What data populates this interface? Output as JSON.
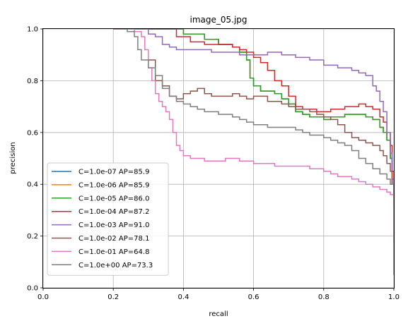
{
  "chart_data": {
    "type": "line",
    "title": "image_05.jpg",
    "xlabel": "recall",
    "ylabel": "precision",
    "xlim": [
      0.0,
      1.0
    ],
    "ylim": [
      0.0,
      1.0
    ],
    "xticks": [
      "0.0",
      "0.2",
      "0.4",
      "0.6",
      "0.8",
      "1.0"
    ],
    "yticks": [
      "0.0",
      "0.2",
      "0.4",
      "0.6",
      "0.8",
      "1.0"
    ],
    "grid": true,
    "legend_position": "lower-left",
    "series": [
      {
        "name": "C=1.0e-07 AP=85.9",
        "color": "#1f77b4",
        "points": [
          [
            0.2,
            1.0
          ],
          [
            0.34,
            1.0
          ],
          [
            0.4,
            0.98
          ],
          [
            0.46,
            0.96
          ],
          [
            0.5,
            0.94
          ],
          [
            0.54,
            0.93
          ],
          [
            0.56,
            0.91
          ],
          [
            0.58,
            0.88
          ],
          [
            0.59,
            0.81
          ],
          [
            0.6,
            0.78
          ],
          [
            0.62,
            0.76
          ],
          [
            0.64,
            0.76
          ],
          [
            0.66,
            0.75
          ],
          [
            0.68,
            0.73
          ],
          [
            0.7,
            0.71
          ],
          [
            0.72,
            0.68
          ],
          [
            0.74,
            0.67
          ],
          [
            0.76,
            0.66
          ],
          [
            0.78,
            0.66
          ],
          [
            0.8,
            0.65
          ],
          [
            0.82,
            0.66
          ],
          [
            0.84,
            0.66
          ],
          [
            0.86,
            0.67
          ],
          [
            0.88,
            0.67
          ],
          [
            0.9,
            0.67
          ],
          [
            0.92,
            0.66
          ],
          [
            0.94,
            0.65
          ],
          [
            0.96,
            0.62
          ],
          [
            0.97,
            0.6
          ],
          [
            0.98,
            0.57
          ],
          [
            0.99,
            0.5
          ],
          [
            0.995,
            0.4
          ],
          [
            1.0,
            0.35
          ]
        ]
      },
      {
        "name": "C=1.0e-06 AP=85.9",
        "color": "#ff7f0e",
        "points": [
          [
            0.2,
            1.0
          ],
          [
            0.34,
            1.0
          ],
          [
            0.4,
            0.98
          ],
          [
            0.46,
            0.96
          ],
          [
            0.5,
            0.94
          ],
          [
            0.54,
            0.93
          ],
          [
            0.56,
            0.91
          ],
          [
            0.58,
            0.88
          ],
          [
            0.59,
            0.81
          ],
          [
            0.6,
            0.78
          ],
          [
            0.62,
            0.76
          ],
          [
            0.64,
            0.76
          ],
          [
            0.66,
            0.75
          ],
          [
            0.68,
            0.73
          ],
          [
            0.7,
            0.71
          ],
          [
            0.72,
            0.68
          ],
          [
            0.74,
            0.67
          ],
          [
            0.76,
            0.66
          ],
          [
            0.78,
            0.66
          ],
          [
            0.8,
            0.65
          ],
          [
            0.82,
            0.66
          ],
          [
            0.84,
            0.66
          ],
          [
            0.86,
            0.67
          ],
          [
            0.88,
            0.67
          ],
          [
            0.9,
            0.67
          ],
          [
            0.92,
            0.66
          ],
          [
            0.94,
            0.65
          ],
          [
            0.96,
            0.62
          ],
          [
            0.97,
            0.6
          ],
          [
            0.98,
            0.57
          ],
          [
            0.99,
            0.5
          ],
          [
            0.995,
            0.4
          ],
          [
            1.0,
            0.35
          ]
        ]
      },
      {
        "name": "C=1.0e-05 AP=86.0",
        "color": "#2ca02c",
        "points": [
          [
            0.2,
            1.0
          ],
          [
            0.34,
            1.0
          ],
          [
            0.4,
            0.98
          ],
          [
            0.46,
            0.96
          ],
          [
            0.5,
            0.94
          ],
          [
            0.54,
            0.93
          ],
          [
            0.56,
            0.91
          ],
          [
            0.58,
            0.88
          ],
          [
            0.59,
            0.81
          ],
          [
            0.6,
            0.78
          ],
          [
            0.62,
            0.76
          ],
          [
            0.64,
            0.76
          ],
          [
            0.66,
            0.75
          ],
          [
            0.68,
            0.73
          ],
          [
            0.7,
            0.71
          ],
          [
            0.72,
            0.68
          ],
          [
            0.74,
            0.67
          ],
          [
            0.76,
            0.66
          ],
          [
            0.78,
            0.66
          ],
          [
            0.8,
            0.65
          ],
          [
            0.82,
            0.66
          ],
          [
            0.84,
            0.66
          ],
          [
            0.86,
            0.67
          ],
          [
            0.88,
            0.67
          ],
          [
            0.9,
            0.67
          ],
          [
            0.92,
            0.66
          ],
          [
            0.94,
            0.65
          ],
          [
            0.96,
            0.62
          ],
          [
            0.97,
            0.6
          ],
          [
            0.98,
            0.57
          ],
          [
            0.99,
            0.5
          ],
          [
            0.995,
            0.4
          ],
          [
            1.0,
            0.35
          ]
        ]
      },
      {
        "name": "C=1.0e-04 AP=87.2",
        "color": "#d62728",
        "points": [
          [
            0.2,
            1.0
          ],
          [
            0.34,
            1.0
          ],
          [
            0.38,
            0.97
          ],
          [
            0.42,
            0.95
          ],
          [
            0.46,
            0.94
          ],
          [
            0.5,
            0.94
          ],
          [
            0.54,
            0.93
          ],
          [
            0.56,
            0.92
          ],
          [
            0.58,
            0.91
          ],
          [
            0.6,
            0.89
          ],
          [
            0.62,
            0.87
          ],
          [
            0.64,
            0.84
          ],
          [
            0.66,
            0.8
          ],
          [
            0.68,
            0.78
          ],
          [
            0.7,
            0.74
          ],
          [
            0.72,
            0.7
          ],
          [
            0.74,
            0.69
          ],
          [
            0.76,
            0.69
          ],
          [
            0.78,
            0.68
          ],
          [
            0.8,
            0.68
          ],
          [
            0.82,
            0.69
          ],
          [
            0.84,
            0.69
          ],
          [
            0.86,
            0.7
          ],
          [
            0.88,
            0.7
          ],
          [
            0.9,
            0.71
          ],
          [
            0.92,
            0.7
          ],
          [
            0.94,
            0.69
          ],
          [
            0.96,
            0.66
          ],
          [
            0.97,
            0.64
          ],
          [
            0.98,
            0.6
          ],
          [
            0.99,
            0.55
          ],
          [
            0.995,
            0.45
          ],
          [
            1.0,
            0.38
          ]
        ]
      },
      {
        "name": "C=1.0e-03 AP=91.0",
        "color": "#9467bd",
        "points": [
          [
            0.2,
            1.0
          ],
          [
            0.3,
            0.98
          ],
          [
            0.32,
            0.97
          ],
          [
            0.34,
            0.94
          ],
          [
            0.36,
            0.93
          ],
          [
            0.38,
            0.92
          ],
          [
            0.4,
            0.92
          ],
          [
            0.44,
            0.92
          ],
          [
            0.48,
            0.91
          ],
          [
            0.52,
            0.91
          ],
          [
            0.56,
            0.9
          ],
          [
            0.6,
            0.9
          ],
          [
            0.64,
            0.91
          ],
          [
            0.68,
            0.9
          ],
          [
            0.72,
            0.89
          ],
          [
            0.76,
            0.88
          ],
          [
            0.8,
            0.86
          ],
          [
            0.84,
            0.85
          ],
          [
            0.86,
            0.85
          ],
          [
            0.88,
            0.84
          ],
          [
            0.9,
            0.83
          ],
          [
            0.92,
            0.82
          ],
          [
            0.94,
            0.78
          ],
          [
            0.95,
            0.76
          ],
          [
            0.96,
            0.72
          ],
          [
            0.97,
            0.68
          ],
          [
            0.98,
            0.6
          ],
          [
            0.99,
            0.52
          ],
          [
            0.995,
            0.42
          ],
          [
            1.0,
            0.35
          ]
        ]
      },
      {
        "name": "C=1.0e-02 AP=78.1",
        "color": "#8c564b",
        "points": [
          [
            0.3,
            0.88
          ],
          [
            0.32,
            0.8
          ],
          [
            0.34,
            0.78
          ],
          [
            0.36,
            0.74
          ],
          [
            0.38,
            0.73
          ],
          [
            0.4,
            0.75
          ],
          [
            0.42,
            0.76
          ],
          [
            0.44,
            0.77
          ],
          [
            0.46,
            0.75
          ],
          [
            0.48,
            0.74
          ],
          [
            0.5,
            0.74
          ],
          [
            0.52,
            0.74
          ],
          [
            0.54,
            0.75
          ],
          [
            0.56,
            0.74
          ],
          [
            0.58,
            0.73
          ],
          [
            0.6,
            0.74
          ],
          [
            0.62,
            0.74
          ],
          [
            0.64,
            0.72
          ],
          [
            0.66,
            0.72
          ],
          [
            0.68,
            0.71
          ],
          [
            0.7,
            0.7
          ],
          [
            0.72,
            0.69
          ],
          [
            0.74,
            0.69
          ],
          [
            0.76,
            0.68
          ],
          [
            0.78,
            0.67
          ],
          [
            0.8,
            0.66
          ],
          [
            0.82,
            0.65
          ],
          [
            0.84,
            0.63
          ],
          [
            0.86,
            0.6
          ],
          [
            0.88,
            0.58
          ],
          [
            0.9,
            0.57
          ],
          [
            0.92,
            0.56
          ],
          [
            0.94,
            0.55
          ],
          [
            0.96,
            0.53
          ],
          [
            0.97,
            0.51
          ],
          [
            0.98,
            0.48
          ],
          [
            0.99,
            0.45
          ],
          [
            0.995,
            0.4
          ],
          [
            1.0,
            0.32
          ]
        ]
      },
      {
        "name": "C=1.0e-01 AP=64.8",
        "color": "#e377c2",
        "points": [
          [
            0.2,
            1.0
          ],
          [
            0.26,
            0.99
          ],
          [
            0.28,
            0.97
          ],
          [
            0.29,
            0.92
          ],
          [
            0.3,
            0.85
          ],
          [
            0.31,
            0.8
          ],
          [
            0.32,
            0.75
          ],
          [
            0.33,
            0.72
          ],
          [
            0.34,
            0.7
          ],
          [
            0.35,
            0.68
          ],
          [
            0.36,
            0.65
          ],
          [
            0.37,
            0.6
          ],
          [
            0.38,
            0.55
          ],
          [
            0.39,
            0.53
          ],
          [
            0.4,
            0.51
          ],
          [
            0.42,
            0.5
          ],
          [
            0.44,
            0.5
          ],
          [
            0.46,
            0.49
          ],
          [
            0.48,
            0.49
          ],
          [
            0.5,
            0.49
          ],
          [
            0.52,
            0.5
          ],
          [
            0.54,
            0.5
          ],
          [
            0.56,
            0.49
          ],
          [
            0.58,
            0.49
          ],
          [
            0.6,
            0.48
          ],
          [
            0.62,
            0.48
          ],
          [
            0.64,
            0.48
          ],
          [
            0.66,
            0.47
          ],
          [
            0.68,
            0.47
          ],
          [
            0.7,
            0.47
          ],
          [
            0.72,
            0.47
          ],
          [
            0.74,
            0.47
          ],
          [
            0.76,
            0.46
          ],
          [
            0.78,
            0.46
          ],
          [
            0.8,
            0.45
          ],
          [
            0.82,
            0.44
          ],
          [
            0.84,
            0.43
          ],
          [
            0.86,
            0.43
          ],
          [
            0.88,
            0.42
          ],
          [
            0.9,
            0.41
          ],
          [
            0.92,
            0.4
          ],
          [
            0.94,
            0.39
          ],
          [
            0.96,
            0.38
          ],
          [
            0.98,
            0.37
          ],
          [
            0.99,
            0.36
          ],
          [
            1.0,
            0.18
          ]
        ]
      },
      {
        "name": "C=1.0e+00 AP=73.3",
        "color": "#7f7f7f",
        "points": [
          [
            0.2,
            1.0
          ],
          [
            0.24,
            0.99
          ],
          [
            0.26,
            0.97
          ],
          [
            0.27,
            0.92
          ],
          [
            0.28,
            0.88
          ],
          [
            0.3,
            0.85
          ],
          [
            0.32,
            0.82
          ],
          [
            0.34,
            0.77
          ],
          [
            0.36,
            0.74
          ],
          [
            0.38,
            0.72
          ],
          [
            0.4,
            0.71
          ],
          [
            0.42,
            0.7
          ],
          [
            0.44,
            0.69
          ],
          [
            0.46,
            0.68
          ],
          [
            0.48,
            0.68
          ],
          [
            0.5,
            0.67
          ],
          [
            0.52,
            0.67
          ],
          [
            0.54,
            0.66
          ],
          [
            0.56,
            0.65
          ],
          [
            0.58,
            0.64
          ],
          [
            0.6,
            0.63
          ],
          [
            0.62,
            0.63
          ],
          [
            0.64,
            0.62
          ],
          [
            0.66,
            0.62
          ],
          [
            0.68,
            0.62
          ],
          [
            0.7,
            0.62
          ],
          [
            0.72,
            0.61
          ],
          [
            0.74,
            0.6
          ],
          [
            0.76,
            0.59
          ],
          [
            0.78,
            0.59
          ],
          [
            0.8,
            0.58
          ],
          [
            0.82,
            0.57
          ],
          [
            0.84,
            0.56
          ],
          [
            0.86,
            0.55
          ],
          [
            0.88,
            0.53
          ],
          [
            0.9,
            0.5
          ],
          [
            0.92,
            0.48
          ],
          [
            0.94,
            0.46
          ],
          [
            0.96,
            0.44
          ],
          [
            0.98,
            0.42
          ],
          [
            0.99,
            0.4
          ],
          [
            1.0,
            0.05
          ]
        ]
      }
    ]
  }
}
